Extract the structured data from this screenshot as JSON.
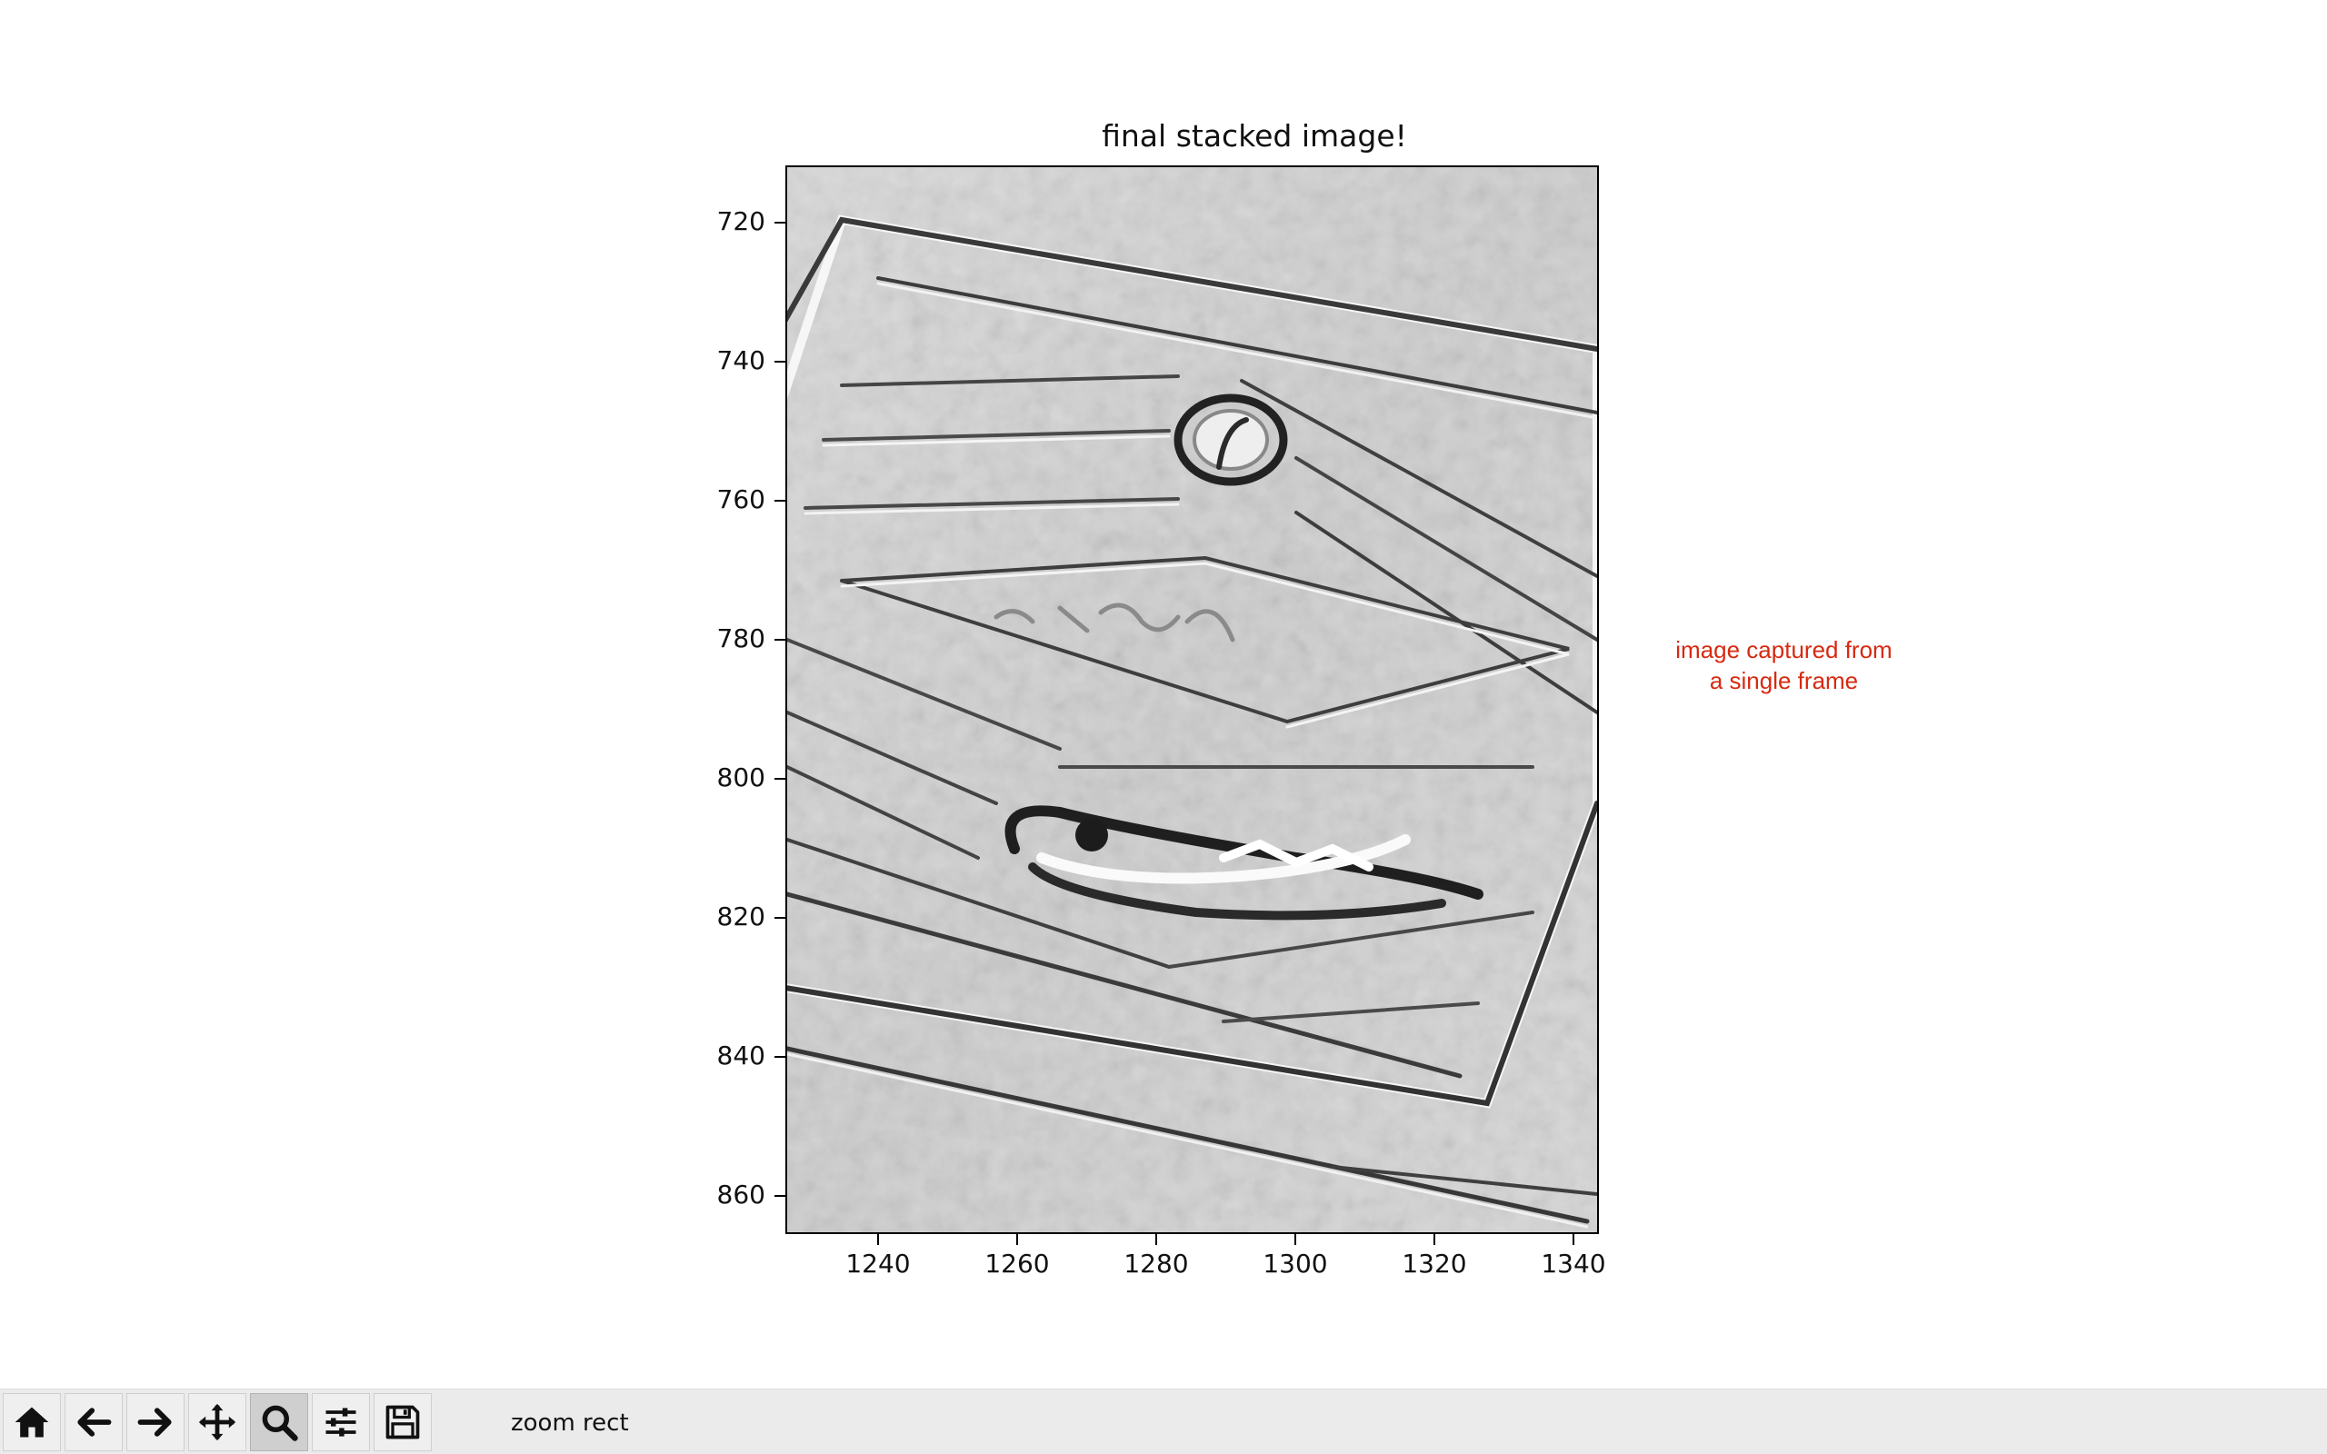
{
  "window": {
    "figure_title": "final stacked image!"
  },
  "annotation": {
    "line1": "image captured from",
    "line2": "a single frame",
    "color": "#d62a10"
  },
  "toolbar": {
    "buttons": [
      {
        "name": "home",
        "icon": "home-icon",
        "active": false
      },
      {
        "name": "back",
        "icon": "arrow-left-icon",
        "active": false
      },
      {
        "name": "forward",
        "icon": "arrow-right-icon",
        "active": false
      },
      {
        "name": "pan",
        "icon": "move-icon",
        "active": false
      },
      {
        "name": "zoom",
        "icon": "magnifier-icon",
        "active": true
      },
      {
        "name": "configure-subplots",
        "icon": "sliders-icon",
        "active": false
      },
      {
        "name": "save",
        "icon": "floppy-disk-icon",
        "active": false
      }
    ],
    "status_message": "zoom rect"
  },
  "chart_data": {
    "type": "image",
    "title": "final stacked image!",
    "xlabel": "",
    "ylabel": "",
    "xlim": [
      1226.5,
      1343.5
    ],
    "ylim": [
      866.5,
      712.5
    ],
    "x_ticks": [
      1240,
      1260,
      1280,
      1300,
      1320,
      1340
    ],
    "x_tick_labels": [
      "1240",
      "1260",
      "1280",
      "1300",
      "1320",
      "1340"
    ],
    "y_ticks": [
      720,
      740,
      760,
      780,
      800,
      820,
      840,
      860
    ],
    "y_tick_labels": [
      "720",
      "740",
      "760",
      "780",
      "800",
      "820",
      "840",
      "860"
    ],
    "colormap": "gray",
    "grid": false,
    "content": "grayscale photo of an embossed metal plate with diagonal ridged stripes"
  }
}
